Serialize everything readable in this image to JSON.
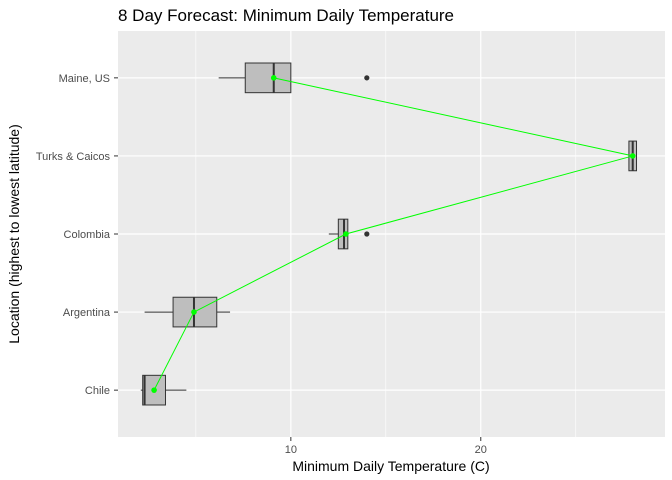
{
  "chart_data": {
    "type": "boxplot",
    "title": "8 Day Forecast: Minimum Daily Temperature",
    "xlabel": "Minimum Daily Temperature (C)",
    "ylabel": "Location (highest to lowest latitude)",
    "xlim": [
      0.9,
      29.7
    ],
    "x_ticks": [
      10,
      20
    ],
    "x_tick_labels": [
      "10",
      "20"
    ],
    "categories": [
      "Maine, US",
      "Turks & Caicos",
      "Colombia",
      "Argentina",
      "Chile"
    ],
    "boxes": [
      {
        "category": "Maine, US",
        "whisker_low": 6.2,
        "q1": 7.6,
        "median": 9.1,
        "q3": 10.0,
        "whisker_high": 10.0,
        "outliers": [
          14.0
        ],
        "mean": 9.1
      },
      {
        "category": "Turks & Caicos",
        "whisker_low": 27.8,
        "q1": 27.8,
        "median": 28.0,
        "q3": 28.2,
        "whisker_high": 28.2,
        "outliers": [],
        "mean": 28.0
      },
      {
        "category": "Colombia",
        "whisker_low": 12.0,
        "q1": 12.5,
        "median": 12.8,
        "q3": 13.0,
        "whisker_high": 13.0,
        "outliers": [
          14.0
        ],
        "mean": 12.9
      },
      {
        "category": "Argentina",
        "whisker_low": 2.3,
        "q1": 3.8,
        "median": 4.9,
        "q3": 6.1,
        "whisker_high": 6.8,
        "outliers": [],
        "mean": 4.9
      },
      {
        "category": "Chile",
        "whisker_low": 2.1,
        "q1": 2.2,
        "median": 2.3,
        "q3": 3.4,
        "whisker_high": 4.5,
        "outliers": [],
        "mean": 2.8
      }
    ],
    "mean_line_color": "#00ff00",
    "box_fill": "#bebebe",
    "panel_background": "#ebebeb",
    "grid": true,
    "legend": "none"
  }
}
